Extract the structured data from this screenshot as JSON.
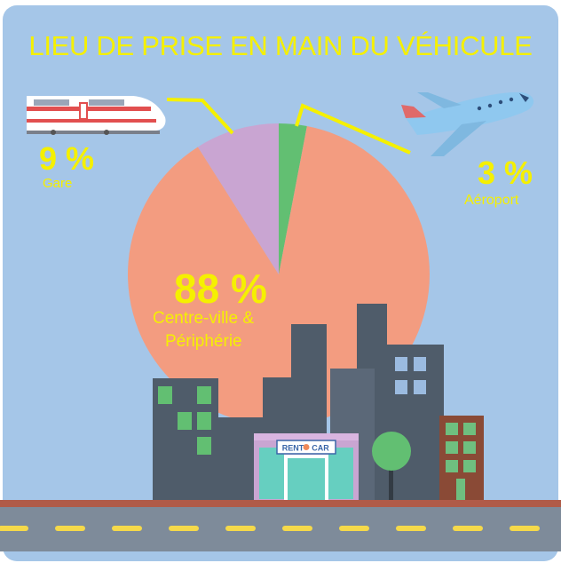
{
  "title": "LIEU DE PRISE EN MAIN DU VÉHICULE",
  "colors": {
    "background": "#a5c6e8",
    "accent_text": "#f5f000",
    "slice_city": "#f39c80",
    "slice_station": "#c9a5d2",
    "slice_airport": "#62bf72"
  },
  "shop_sign": {
    "left": "RENT",
    "right": "CAR"
  },
  "chart_data": {
    "type": "pie",
    "title": "LIEU DE PRISE EN MAIN DU VÉHICULE",
    "slices": [
      {
        "label": "Centre-ville & Périphérie",
        "value": 88,
        "value_label": "88 %",
        "color": "#f39c80"
      },
      {
        "label": "Gare",
        "value": 9,
        "value_label": "9 %",
        "color": "#c9a5d2"
      },
      {
        "label": "Aéroport",
        "value": 3,
        "value_label": "3 %",
        "color": "#62bf72"
      }
    ],
    "label_lines": [
      "Centre-ville &",
      "Périphérie"
    ],
    "icons": [
      "train-icon",
      "airplane-icon"
    ]
  }
}
